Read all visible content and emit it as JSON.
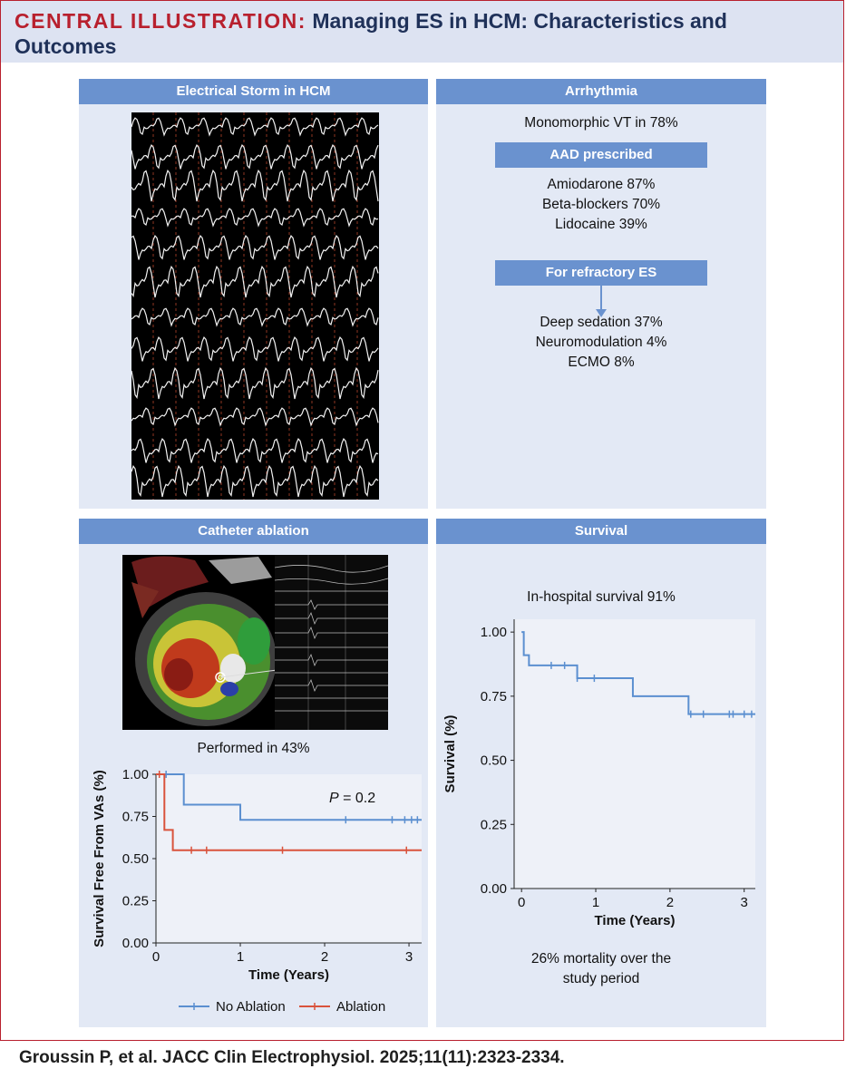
{
  "header": {
    "tag": "CENTRAL ILLUSTRATION:",
    "title": "Managing ES in HCM: Characteristics and Outcomes"
  },
  "panels": {
    "storm": {
      "title": "Electrical Storm in HCM"
    },
    "arrhythmia": {
      "title": "Arrhythmia",
      "vt": "Monomorphic VT in 78%",
      "aad_label": "AAD prescribed",
      "aad_items": [
        "Amiodarone 87%",
        "Beta-blockers 70%",
        "Lidocaine 39%"
      ],
      "refractory_label": "For refractory ES",
      "refractory_items": [
        "Deep sedation 37%",
        "Neuromodulation 4%",
        "ECMO 8%"
      ]
    },
    "ablation": {
      "title": "Catheter ablation",
      "performed": "Performed in 43%"
    },
    "survival": {
      "title": "Survival",
      "in_hospital": "In-hospital survival 91%",
      "mortality_line1": "26% mortality over the",
      "mortality_line2": "study period"
    }
  },
  "chart_data": [
    {
      "type": "line",
      "title": "",
      "xlabel": "Time (Years)",
      "ylabel": "Survival Free From VAs (%)",
      "xlim": [
        0,
        3.15
      ],
      "ylim": [
        0,
        1.0
      ],
      "x_ticks": [
        "0",
        "1",
        "2",
        "3"
      ],
      "y_ticks": [
        "0.00",
        "0.25",
        "0.50",
        "0.75",
        "1.00"
      ],
      "annotation_p": "P",
      "annotation_rest": " = 0.2",
      "series": [
        {
          "name": "No Ablation",
          "color": "#5b8fd0",
          "steps": [
            [
              0,
              1.0
            ],
            [
              0.33,
              0.82
            ],
            [
              1.0,
              0.73
            ],
            [
              3.15,
              0.73
            ]
          ],
          "censor_x": [
            0.12,
            2.25,
            2.8,
            2.95,
            3.03,
            3.1
          ]
        },
        {
          "name": "Ablation",
          "color": "#d9533c",
          "steps": [
            [
              0,
              1.0
            ],
            [
              0.1,
              0.67
            ],
            [
              0.2,
              0.55
            ],
            [
              3.15,
              0.55
            ]
          ],
          "censor_x": [
            0.04,
            0.42,
            0.6,
            1.5,
            2.97
          ]
        }
      ],
      "legend": [
        "No Ablation",
        "Ablation"
      ]
    },
    {
      "type": "line",
      "title": "",
      "xlabel": "Time (Years)",
      "ylabel": "Survival (%)",
      "xlim": [
        -0.1,
        3.15
      ],
      "ylim": [
        0,
        1.05
      ],
      "x_ticks": [
        "0",
        "1",
        "2",
        "3"
      ],
      "y_ticks": [
        "0.00",
        "0.25",
        "0.50",
        "0.75",
        "1.00"
      ],
      "series": [
        {
          "name": "Survival",
          "color": "#5b8fd0",
          "steps": [
            [
              0,
              1.0
            ],
            [
              0.03,
              0.91
            ],
            [
              0.1,
              0.87
            ],
            [
              0.75,
              0.82
            ],
            [
              1.5,
              0.75
            ],
            [
              2.25,
              0.68
            ],
            [
              3.15,
              0.68
            ]
          ],
          "censor_x": [
            0.4,
            0.58,
            0.75,
            0.98,
            2.28,
            2.45,
            2.8,
            2.85,
            3.0,
            3.1
          ]
        }
      ]
    }
  ],
  "citation": "Groussin P, et al. JACC Clin Electrophysiol. 2025;11(11):2323-2334."
}
